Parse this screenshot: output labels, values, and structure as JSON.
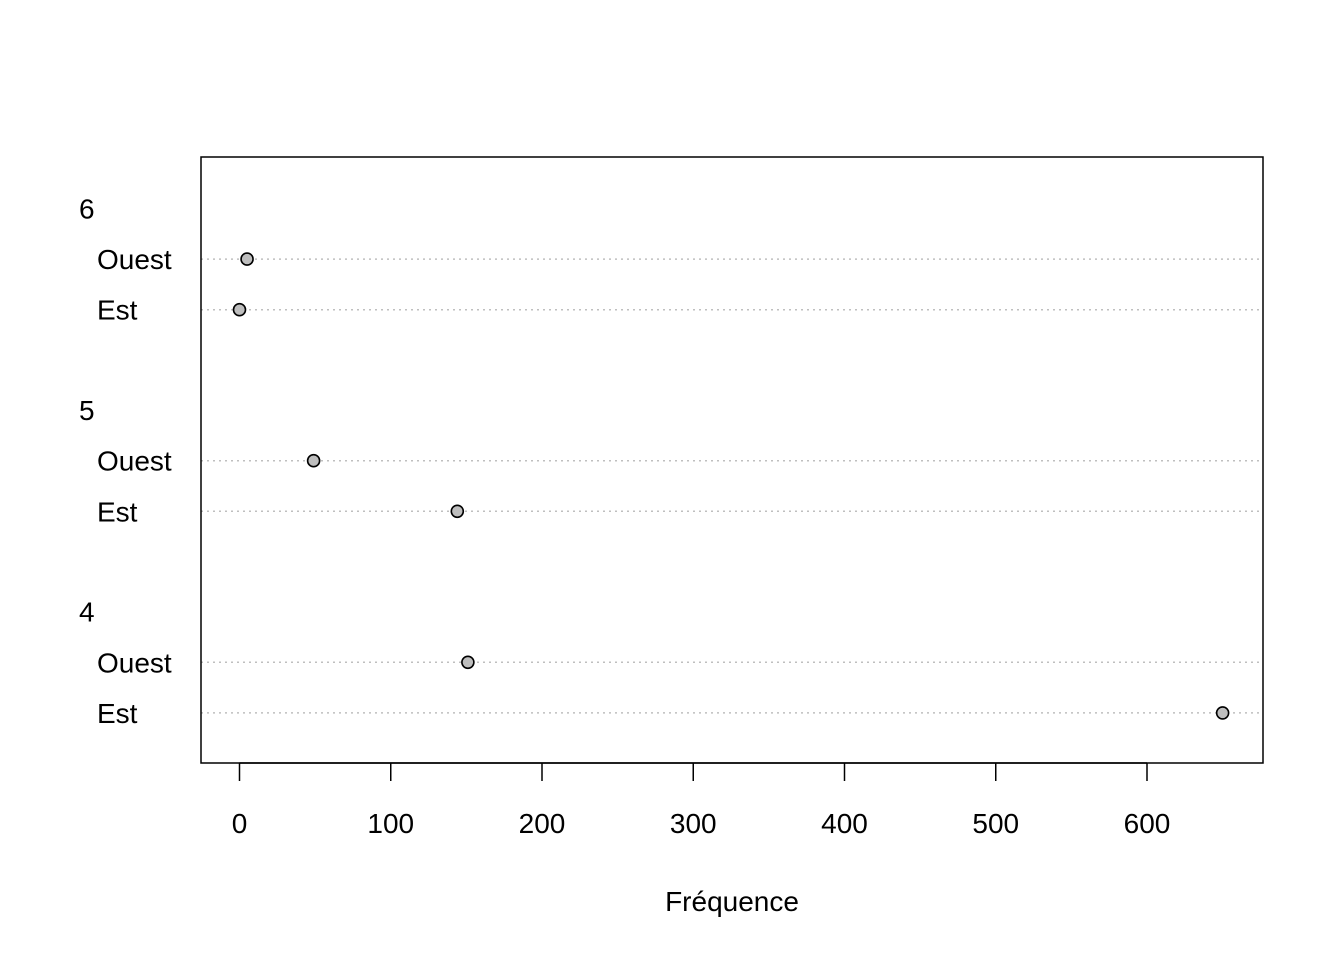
{
  "chart_data": {
    "type": "scatter",
    "subtype": "dotchart",
    "title": "",
    "xlabel": "Fréquence",
    "ylabel": "",
    "xlim": [
      -25,
      675
    ],
    "xticks": [
      0,
      100,
      200,
      300,
      400,
      500,
      600
    ],
    "grid": "dotted horizontal guide line per row",
    "legend": "none",
    "point_color": "#bebebe",
    "groups": [
      {
        "label": "6",
        "items": [
          {
            "label": "Ouest",
            "value": 5
          },
          {
            "label": "Est",
            "value": 0
          }
        ]
      },
      {
        "label": "5",
        "items": [
          {
            "label": "Ouest",
            "value": 49
          },
          {
            "label": "Est",
            "value": 144
          }
        ]
      },
      {
        "label": "4",
        "items": [
          {
            "label": "Ouest",
            "value": 151
          },
          {
            "label": "Est",
            "value": 650
          }
        ]
      }
    ]
  }
}
